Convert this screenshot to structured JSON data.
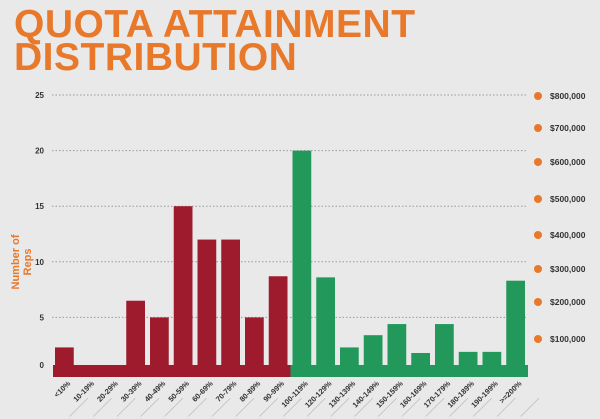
{
  "chart_data": {
    "type": "bar",
    "title": "QUOTA ATTAINMENT DISTRIBUTION",
    "title_lines": [
      "QUOTA ATTAINMENT",
      "DISTRIBUTION"
    ],
    "ylabel": "Number of Reps",
    "ylim": [
      0,
      25
    ],
    "yticks": [
      0,
      5,
      10,
      15,
      20,
      25
    ],
    "grid": true,
    "categories": [
      "<10%",
      "10-19%",
      "20-29%",
      "30-39%",
      "40-49%",
      "50-59%",
      "60-69%",
      "70-79%",
      "80-89%",
      "90-99%",
      "100-119%",
      "120-129%",
      "130-139%",
      "140-149%",
      "150-159%",
      "160-169%",
      "170-179%",
      "180-189%",
      "190-199%",
      ">=200%"
    ],
    "values": [
      2.3,
      0,
      0,
      6.5,
      5,
      15,
      12,
      12,
      5,
      8.7,
      20,
      8.6,
      2.3,
      3.4,
      4.4,
      1.8,
      4.4,
      1.9,
      1.9,
      8.3
    ],
    "secondary_axis_labels": [
      "$800,000",
      "$700,000",
      "$600,000",
      "$500,000",
      "$400,000",
      "$300,000",
      "$200,000",
      "$100,000"
    ],
    "colors": {
      "below_quota": "#9e1b2e",
      "at_or_above_quota": "#22995a",
      "accent": "#e8782a",
      "background": "#e9e9e9"
    }
  }
}
